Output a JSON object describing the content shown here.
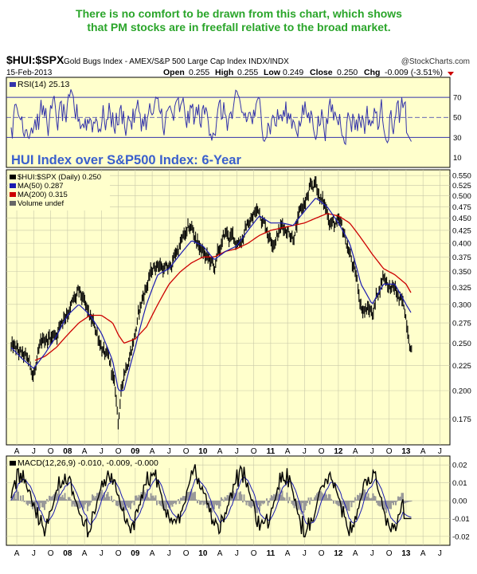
{
  "commentary": {
    "line1": "There is no comfort to be drawn from this chart, which shows",
    "line2": "that PM stocks are in freefall relative to the broad market.",
    "color": "#2aa52a"
  },
  "header": {
    "symbol": "$HUI:$SPX",
    "description": "Gold Bugs Index - AMEX/S&P 500 Large Cap Index INDX/INDX",
    "copyright": "@StockCharts.com",
    "date": "15-Feb-2013",
    "open_label": "Open",
    "open": "0.255",
    "high_label": "High",
    "high": "0.255",
    "low_label": "Low",
    "low": "0.249",
    "close_label": "Close",
    "close": "0.250",
    "chg_label": "Chg",
    "chg": "-0.009 (-3.51%)"
  },
  "rsi_panel": {
    "label": "RSI(14) 25.13",
    "ticks": [
      "70",
      "50",
      "30",
      "10"
    ],
    "color": "#3333aa"
  },
  "main_panel": {
    "annotation": "HUI Index over S&P500 Index: 6-Year",
    "legend": [
      {
        "text": "$HUI:$SPX (Daily) 0.250",
        "color": "#000000"
      },
      {
        "text": "MA(50) 0.287",
        "color": "#1a1ab0"
      },
      {
        "text": "MA(200) 0.315",
        "color": "#cc0000"
      },
      {
        "text": "Volume undef",
        "color": "#666666"
      }
    ],
    "ticks": [
      "0.550",
      "0.525",
      "0.500",
      "0.475",
      "0.450",
      "0.425",
      "0.400",
      "0.375",
      "0.350",
      "0.325",
      "0.300",
      "0.275",
      "0.250",
      "0.225",
      "0.200",
      "0.175"
    ]
  },
  "macd_panel": {
    "label": "MACD(12,26,9) -0.010, -0.009, -0.000",
    "ticks": [
      "0.02",
      "0.01",
      "0.00",
      "-0.01",
      "-0.02"
    ]
  },
  "x_axis_labels": [
    "A",
    "J",
    "O",
    "08",
    "A",
    "J",
    "O",
    "09",
    "A",
    "J",
    "O",
    "10",
    "A",
    "J",
    "O",
    "11",
    "A",
    "J",
    "O",
    "12",
    "A",
    "J",
    "O",
    "13",
    "A",
    "J"
  ],
  "colors": {
    "panel_bg": "#ffffcc",
    "grid": "#bbbbbb",
    "price": "#000000",
    "ma50": "#1a1ab0",
    "ma200": "#cc0000",
    "rsi": "#3333aa",
    "macd": "#000000",
    "macd_hist": "#999999"
  },
  "chart_data": {
    "type": "line",
    "title": "$HUI:$SPX",
    "xlabel": "",
    "ylabel": "",
    "yscale": "log",
    "ylim": [
      0.155,
      0.565
    ],
    "x": [
      "2007-03",
      "2007-05",
      "2007-07",
      "2007-09",
      "2007-11",
      "2008-01",
      "2008-03",
      "2008-05",
      "2008-07",
      "2008-09",
      "2008-10",
      "2008-11",
      "2009-01",
      "2009-03",
      "2009-05",
      "2009-07",
      "2009-09",
      "2009-11",
      "2010-01",
      "2010-03",
      "2010-05",
      "2010-07",
      "2010-09",
      "2010-11",
      "2011-01",
      "2011-03",
      "2011-05",
      "2011-07",
      "2011-09",
      "2011-11",
      "2012-01",
      "2012-03",
      "2012-05",
      "2012-07",
      "2012-09",
      "2012-11",
      "2013-01",
      "2013-02"
    ],
    "series": [
      {
        "name": "$HUI:$SPX (Daily)",
        "values": [
          0.245,
          0.23,
          0.215,
          0.25,
          0.265,
          0.3,
          0.31,
          0.27,
          0.25,
          0.21,
          0.17,
          0.215,
          0.27,
          0.33,
          0.37,
          0.35,
          0.4,
          0.42,
          0.38,
          0.35,
          0.41,
          0.4,
          0.44,
          0.47,
          0.42,
          0.44,
          0.43,
          0.48,
          0.52,
          0.46,
          0.43,
          0.38,
          0.3,
          0.29,
          0.35,
          0.32,
          0.28,
          0.25
        ]
      },
      {
        "name": "MA(50)",
        "values": [
          0.245,
          0.232,
          0.222,
          0.238,
          0.258,
          0.285,
          0.3,
          0.285,
          0.262,
          0.23,
          0.2,
          0.2,
          0.245,
          0.3,
          0.345,
          0.355,
          0.38,
          0.405,
          0.395,
          0.37,
          0.385,
          0.395,
          0.425,
          0.455,
          0.44,
          0.44,
          0.435,
          0.465,
          0.495,
          0.475,
          0.44,
          0.4,
          0.33,
          0.3,
          0.33,
          0.33,
          0.3,
          0.287
        ]
      },
      {
        "name": "MA(200)",
        "values": [
          null,
          null,
          0.23,
          0.235,
          0.245,
          0.26,
          0.275,
          0.285,
          0.285,
          0.275,
          0.26,
          0.25,
          0.255,
          0.27,
          0.3,
          0.33,
          0.35,
          0.365,
          0.375,
          0.375,
          0.385,
          0.39,
          0.4,
          0.415,
          0.425,
          0.43,
          0.435,
          0.44,
          0.45,
          0.46,
          0.455,
          0.44,
          0.41,
          0.38,
          0.355,
          0.345,
          0.33,
          0.315
        ]
      }
    ],
    "panels": [
      {
        "name": "RSI(14)",
        "ylim": [
          0,
          90
        ],
        "reference_lines": [
          70,
          50,
          30
        ],
        "last": 25.13
      },
      {
        "name": "MACD(12,26,9)",
        "ylim": [
          -0.025,
          0.025
        ],
        "last": [
          -0.01,
          -0.009,
          -0.0
        ]
      }
    ],
    "grid": true,
    "legend": "top-left"
  }
}
